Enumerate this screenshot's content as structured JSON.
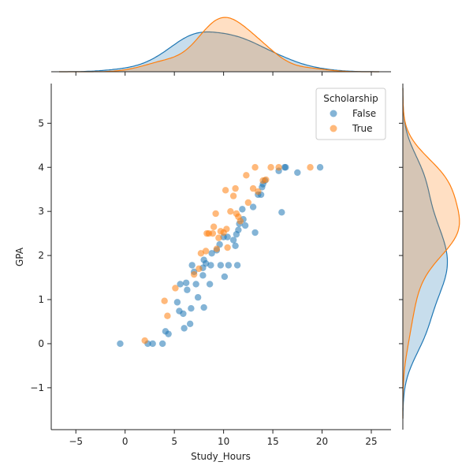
{
  "chart_data": {
    "type": "scatter",
    "xlabel": "Study_Hours",
    "ylabel": "GPA",
    "xlim": [
      -7.5,
      27
    ],
    "ylim": [
      -1.95,
      5.9
    ],
    "xticks": [
      -5,
      0,
      5,
      10,
      15,
      20,
      25
    ],
    "yticks": [
      -1,
      0,
      1,
      2,
      3,
      4,
      5
    ],
    "tick_labels": {
      "x": [
        "−5",
        "0",
        "5",
        "10",
        "15",
        "20",
        "25"
      ],
      "y": [
        "−1",
        "0",
        "1",
        "2",
        "3",
        "4",
        "5"
      ]
    },
    "grid": false,
    "legend": {
      "title": "Scholarship",
      "placement": "top-right",
      "entries": [
        "False",
        "True"
      ]
    },
    "colors": {
      "False": "#1f77b4",
      "True": "#ff7f0e"
    },
    "series": [
      {
        "name": "False",
        "points": [
          [
            -0.5,
            0.0
          ],
          [
            2.3,
            0.0
          ],
          [
            2.8,
            0.0
          ],
          [
            3.8,
            0.0
          ],
          [
            4.1,
            0.28
          ],
          [
            4.4,
            0.22
          ],
          [
            5.3,
            0.94
          ],
          [
            5.5,
            0.74
          ],
          [
            5.6,
            1.35
          ],
          [
            5.9,
            0.68
          ],
          [
            6.0,
            0.35
          ],
          [
            6.2,
            1.38
          ],
          [
            6.3,
            1.22
          ],
          [
            6.6,
            0.45
          ],
          [
            6.7,
            0.8
          ],
          [
            6.8,
            1.78
          ],
          [
            7.0,
            1.63
          ],
          [
            7.2,
            1.35
          ],
          [
            7.4,
            1.05
          ],
          [
            7.9,
            1.72
          ],
          [
            7.9,
            1.55
          ],
          [
            8.0,
            1.9
          ],
          [
            8.0,
            0.82
          ],
          [
            8.2,
            1.82
          ],
          [
            8.6,
            1.35
          ],
          [
            8.7,
            1.78
          ],
          [
            8.8,
            2.05
          ],
          [
            9.3,
            2.12
          ],
          [
            9.6,
            2.25
          ],
          [
            9.7,
            1.78
          ],
          [
            10.0,
            2.42
          ],
          [
            10.1,
            1.52
          ],
          [
            10.4,
            2.42
          ],
          [
            10.5,
            1.78
          ],
          [
            11.0,
            2.35
          ],
          [
            11.2,
            2.22
          ],
          [
            11.3,
            2.48
          ],
          [
            11.4,
            1.78
          ],
          [
            11.5,
            2.58
          ],
          [
            11.6,
            2.72
          ],
          [
            11.9,
            3.05
          ],
          [
            12.0,
            2.82
          ],
          [
            12.2,
            2.68
          ],
          [
            13.0,
            3.1
          ],
          [
            13.2,
            2.52
          ],
          [
            13.5,
            3.38
          ],
          [
            13.8,
            3.38
          ],
          [
            13.9,
            3.55
          ],
          [
            14.0,
            3.62
          ],
          [
            14.2,
            3.7
          ],
          [
            15.6,
            3.92
          ],
          [
            15.9,
            2.98
          ],
          [
            16.2,
            4.0
          ],
          [
            16.3,
            4.0
          ],
          [
            17.5,
            3.88
          ],
          [
            19.8,
            4.0
          ]
        ]
      },
      {
        "name": "True",
        "points": [
          [
            2.0,
            0.07
          ],
          [
            4.0,
            0.97
          ],
          [
            4.3,
            0.63
          ],
          [
            5.1,
            1.26
          ],
          [
            7.0,
            1.57
          ],
          [
            7.5,
            1.7
          ],
          [
            7.7,
            2.05
          ],
          [
            8.2,
            2.1
          ],
          [
            8.3,
            2.5
          ],
          [
            8.5,
            2.5
          ],
          [
            8.9,
            2.5
          ],
          [
            9.0,
            2.65
          ],
          [
            9.2,
            2.95
          ],
          [
            9.3,
            2.15
          ],
          [
            9.5,
            2.4
          ],
          [
            9.7,
            2.55
          ],
          [
            10.0,
            2.52
          ],
          [
            10.2,
            3.48
          ],
          [
            10.3,
            2.6
          ],
          [
            10.4,
            2.18
          ],
          [
            10.7,
            3.0
          ],
          [
            11.0,
            3.35
          ],
          [
            11.2,
            3.52
          ],
          [
            11.3,
            2.95
          ],
          [
            11.5,
            2.88
          ],
          [
            11.7,
            2.78
          ],
          [
            12.3,
            3.82
          ],
          [
            12.5,
            3.2
          ],
          [
            13.0,
            3.52
          ],
          [
            13.2,
            4.0
          ],
          [
            13.5,
            3.45
          ],
          [
            14.0,
            3.7
          ],
          [
            14.3,
            3.72
          ],
          [
            14.8,
            4.0
          ],
          [
            15.6,
            4.0
          ],
          [
            18.8,
            4.0
          ]
        ]
      }
    ],
    "marginals": {
      "top": {
        "type": "kde",
        "variable": "Study_Hours",
        "fill": true
      },
      "right": {
        "type": "kde",
        "variable": "GPA",
        "fill": true
      }
    }
  }
}
